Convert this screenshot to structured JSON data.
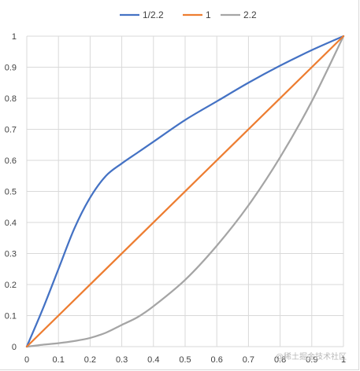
{
  "chart_data": {
    "type": "line",
    "title": "",
    "xlabel": "",
    "ylabel": "",
    "xlim": [
      0,
      1
    ],
    "ylim": [
      0,
      1
    ],
    "x_ticks": [
      "0",
      "0.1",
      "0.2",
      "0.3",
      "0.4",
      "0.5",
      "0.6",
      "0.7",
      "0.8",
      "0.9",
      "1"
    ],
    "y_ticks": [
      "0",
      "0.1",
      "0.2",
      "0.3",
      "0.4",
      "0.5",
      "0.6",
      "0.7",
      "0.8",
      "0.9",
      "1"
    ],
    "grid": true,
    "legend_position": "top",
    "series": [
      {
        "name": "1/2.2",
        "color": "#4472c4",
        "points": [
          [
            0,
            0
          ],
          [
            0.05,
            0.12
          ],
          [
            0.1,
            0.25
          ],
          [
            0.15,
            0.38
          ],
          [
            0.2,
            0.48
          ],
          [
            0.25,
            0.55
          ],
          [
            0.3,
            0.59
          ],
          [
            0.35,
            0.625
          ],
          [
            0.4,
            0.66
          ],
          [
            0.5,
            0.73
          ],
          [
            0.6,
            0.79
          ],
          [
            0.7,
            0.85
          ],
          [
            0.8,
            0.905
          ],
          [
            0.9,
            0.955
          ],
          [
            1,
            1
          ]
        ]
      },
      {
        "name": "1",
        "color": "#ed7d31",
        "points": [
          [
            0,
            0
          ],
          [
            1,
            1
          ]
        ]
      },
      {
        "name": "2.2",
        "color": "#a5a5a5",
        "points": [
          [
            0,
            0
          ],
          [
            0.05,
            0.006
          ],
          [
            0.1,
            0.011
          ],
          [
            0.15,
            0.018
          ],
          [
            0.2,
            0.028
          ],
          [
            0.25,
            0.045
          ],
          [
            0.3,
            0.07
          ],
          [
            0.35,
            0.095
          ],
          [
            0.4,
            0.13
          ],
          [
            0.5,
            0.215
          ],
          [
            0.6,
            0.325
          ],
          [
            0.7,
            0.455
          ],
          [
            0.8,
            0.61
          ],
          [
            0.9,
            0.79
          ],
          [
            1,
            1
          ]
        ]
      }
    ]
  },
  "watermark": "@稀土掘金技术社区"
}
